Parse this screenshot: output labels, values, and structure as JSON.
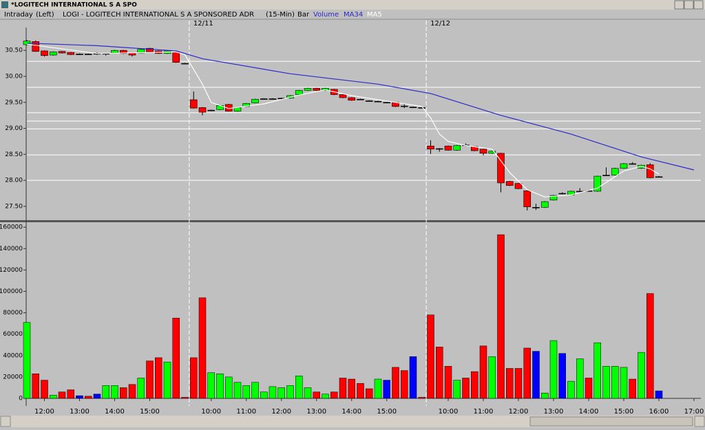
{
  "window": {
    "title": "*LOGITECH INTERNATIONAL S A SPO"
  },
  "header": {
    "mode": "Intraday",
    "side": "(Left)",
    "style": "Bar"
  },
  "chart_data": [
    {
      "type": "candlestick",
      "title": "LOGI - LOGITECH INTERNATIONAL S A SPONSORED ADR",
      "interval": "(15-Min)",
      "up_color": "#00ff00",
      "down_color": "#ff0000",
      "flat_color": "#000000",
      "ylim": [
        27.26,
        30.94
      ],
      "yticks": [
        {
          "value": 30.5,
          "label": "30.50"
        },
        {
          "value": 30.0,
          "label": "30.00"
        },
        {
          "value": 29.5,
          "label": "29.50"
        },
        {
          "value": 29.0,
          "label": "29.00"
        },
        {
          "value": 28.5,
          "label": "28.50"
        },
        {
          "value": 28.0,
          "label": "28.00"
        },
        {
          "value": 27.5,
          "label": "27.50"
        }
      ],
      "hlines": [
        30.29,
        29.79,
        29.3,
        29.14,
        28.99,
        28.49,
        28.0
      ],
      "day_starts": [
        19,
        46
      ],
      "day_labels": [
        "12/11",
        "12/12"
      ],
      "open": [
        30.61,
        30.67,
        30.49,
        30.41,
        30.48,
        30.46,
        30.43,
        30.43,
        30.44,
        30.44,
        30.45,
        30.5,
        30.45,
        30.45,
        30.54,
        30.49,
        30.44,
        30.47,
        30.25,
        29.55,
        29.4,
        29.35,
        29.36,
        29.46,
        29.33,
        29.42,
        29.49,
        29.57,
        29.57,
        29.58,
        29.58,
        29.65,
        29.73,
        29.77,
        29.73,
        29.75,
        29.65,
        29.59,
        29.56,
        29.53,
        29.52,
        29.5,
        29.5,
        29.43,
        29.41,
        29.4,
        28.66,
        28.61,
        28.66,
        28.58,
        28.68,
        28.65,
        28.6,
        28.52,
        28.52,
        27.98,
        27.94,
        27.8,
        27.48,
        27.48,
        27.62,
        27.75,
        27.72,
        27.79,
        27.8,
        27.79,
        28.1,
        28.1,
        28.23,
        28.32,
        28.23,
        28.3,
        28.07,
        null,
        null,
        null,
        null
      ],
      "high": [
        30.7,
        30.69,
        30.5,
        30.48,
        30.49,
        30.47,
        30.44,
        30.44,
        30.46,
        30.45,
        30.51,
        30.51,
        30.46,
        30.53,
        30.55,
        30.5,
        30.5,
        30.48,
        30.26,
        29.71,
        29.41,
        29.36,
        29.45,
        29.47,
        29.41,
        29.49,
        29.57,
        29.58,
        29.58,
        29.59,
        29.64,
        29.74,
        29.78,
        29.78,
        29.78,
        29.76,
        29.66,
        29.6,
        29.57,
        29.54,
        29.53,
        29.51,
        29.51,
        29.47,
        29.42,
        29.41,
        28.77,
        28.62,
        28.67,
        28.68,
        28.71,
        28.66,
        28.61,
        28.57,
        28.53,
        27.99,
        27.95,
        27.81,
        27.55,
        27.6,
        27.72,
        27.77,
        27.8,
        27.85,
        27.82,
        28.09,
        28.25,
        28.24,
        28.33,
        28.35,
        28.3,
        28.33,
        28.08,
        null,
        null,
        null,
        null
      ],
      "low": [
        30.6,
        30.47,
        30.38,
        30.4,
        30.44,
        30.41,
        30.42,
        30.42,
        30.41,
        30.4,
        30.44,
        30.43,
        30.38,
        30.44,
        30.46,
        30.43,
        30.43,
        30.26,
        30.24,
        29.38,
        29.25,
        29.33,
        29.35,
        29.32,
        29.32,
        29.41,
        29.48,
        29.56,
        29.56,
        29.57,
        29.57,
        29.64,
        29.72,
        29.72,
        29.72,
        29.64,
        29.58,
        29.53,
        29.55,
        29.52,
        29.51,
        29.49,
        29.41,
        29.39,
        29.4,
        29.39,
        28.51,
        28.55,
        28.57,
        28.57,
        28.66,
        28.56,
        28.48,
        28.51,
        27.77,
        27.89,
        27.83,
        27.42,
        27.43,
        27.47,
        27.61,
        27.73,
        27.71,
        27.78,
        27.79,
        27.78,
        28.09,
        28.09,
        28.22,
        28.31,
        28.22,
        28.04,
        28.06,
        null,
        null,
        null,
        null
      ],
      "close": [
        30.68,
        30.48,
        30.4,
        30.47,
        30.45,
        30.42,
        30.43,
        30.43,
        30.44,
        30.44,
        30.5,
        30.44,
        30.41,
        30.52,
        30.47,
        30.44,
        30.49,
        30.27,
        30.25,
        29.39,
        29.31,
        29.35,
        29.44,
        29.33,
        29.4,
        29.48,
        29.56,
        29.57,
        29.57,
        29.58,
        29.63,
        29.73,
        29.77,
        29.73,
        29.77,
        29.65,
        29.59,
        29.54,
        29.56,
        29.53,
        29.52,
        29.5,
        29.42,
        29.43,
        29.41,
        29.4,
        28.6,
        28.61,
        28.58,
        28.67,
        28.68,
        28.57,
        28.52,
        28.56,
        27.95,
        27.9,
        27.84,
        27.49,
        27.48,
        27.59,
        27.71,
        27.75,
        27.79,
        27.79,
        27.8,
        28.08,
        28.1,
        28.23,
        28.32,
        28.32,
        28.29,
        28.05,
        28.07,
        null,
        null,
        null,
        null
      ],
      "series": [
        {
          "name": "MA34",
          "color": "#2a2ac8",
          "x": [
            0,
            8,
            17,
            20,
            30,
            40,
            46,
            54,
            62,
            70,
            76
          ],
          "values": [
            30.64,
            30.59,
            30.49,
            30.34,
            30.05,
            29.85,
            29.67,
            29.25,
            28.89,
            28.45,
            28.2
          ]
        },
        {
          "name": "MA5",
          "color": "#ffffff",
          "x": [
            0,
            8,
            17,
            18,
            20,
            21,
            23,
            27,
            31,
            34,
            37,
            42,
            45,
            46,
            47,
            48,
            50,
            53,
            55,
            57,
            59,
            62,
            65,
            68,
            70,
            71,
            72
          ],
          "values": [
            30.62,
            30.44,
            30.47,
            30.42,
            29.85,
            29.5,
            29.38,
            29.47,
            29.64,
            29.74,
            29.63,
            29.5,
            29.42,
            29.2,
            28.89,
            28.75,
            28.67,
            28.6,
            28.15,
            27.82,
            27.68,
            27.72,
            27.85,
            28.18,
            28.27,
            28.22,
            28.12
          ]
        }
      ]
    },
    {
      "type": "bar",
      "ylim": [
        0,
        164000
      ],
      "yticks": [
        0,
        20000,
        40000,
        60000,
        80000,
        100000,
        120000,
        140000,
        160000
      ],
      "categories": [
        null,
        null,
        "12:00",
        null,
        null,
        null,
        "13:00",
        null,
        null,
        null,
        "14:00",
        null,
        null,
        null,
        "15:00",
        null,
        null,
        null,
        null,
        null,
        null,
        "10:00",
        null,
        null,
        null,
        "11:00",
        null,
        null,
        null,
        "12:00",
        null,
        null,
        null,
        "13:00",
        null,
        null,
        null,
        "14:00",
        null,
        null,
        null,
        "15:00",
        null,
        null,
        null,
        null,
        null,
        null,
        "10:00",
        null,
        null,
        null,
        "11:00",
        null,
        null,
        null,
        "12:00",
        null,
        null,
        null,
        "13:00",
        null,
        null,
        null,
        "14:00",
        null,
        null,
        null,
        "15:00",
        null,
        null,
        null,
        "16:00",
        null,
        null,
        null,
        "17:00"
      ],
      "series": [
        {
          "name": "Volume",
          "values": [
            71000,
            23000,
            17000,
            3000,
            6000,
            8000,
            2500,
            2000,
            4000,
            12000,
            12000,
            10000,
            13000,
            19000,
            35000,
            38000,
            34000,
            75000,
            1000,
            38000,
            94000,
            24000,
            23000,
            20000,
            15000,
            12000,
            15000,
            6000,
            11000,
            10000,
            12000,
            21000,
            10000,
            6000,
            4000,
            6000,
            19000,
            18000,
            14000,
            9000,
            18000,
            17000,
            29000,
            26000,
            39000,
            1000,
            78000,
            48000,
            30000,
            17000,
            19000,
            25000,
            49000,
            39000,
            153000,
            28000,
            28000,
            47000,
            44000,
            5000,
            54000,
            42000,
            16000,
            37000,
            19000,
            52000,
            30000,
            30000,
            29000,
            18000,
            43000,
            98000,
            7000,
            null,
            null,
            null,
            null
          ],
          "colors": [
            "#00ff00",
            "#ff0000",
            "#ff0000",
            "#00ff00",
            "#ff0000",
            "#ff0000",
            "#0000ff",
            "#ff0000",
            "#0000ff",
            "#00ff00",
            "#00ff00",
            "#ff0000",
            "#ff0000",
            "#00ff00",
            "#ff0000",
            "#ff0000",
            "#00ff00",
            "#ff0000",
            "#ff0000",
            "#ff0000",
            "#ff0000",
            "#00ff00",
            "#00ff00",
            "#00ff00",
            "#00ff00",
            "#00ff00",
            "#00ff00",
            "#00ff00",
            "#00ff00",
            "#00ff00",
            "#00ff00",
            "#00ff00",
            "#00ff00",
            "#ff0000",
            "#00ff00",
            "#ff0000",
            "#ff0000",
            "#ff0000",
            "#ff0000",
            "#ff0000",
            "#00ff00",
            "#0000ff",
            "#ff0000",
            "#ff0000",
            "#0000ff",
            "#ff0000",
            "#ff0000",
            "#ff0000",
            "#ff0000",
            "#00ff00",
            "#ff0000",
            "#ff0000",
            "#ff0000",
            "#00ff00",
            "#ff0000",
            "#ff0000",
            "#ff0000",
            "#ff0000",
            "#0000ff",
            "#00ff00",
            "#00ff00",
            "#0000ff",
            "#00ff00",
            "#00ff00",
            "#ff0000",
            "#00ff00",
            "#00ff00",
            "#00ff00",
            "#00ff00",
            "#ff0000",
            "#00ff00",
            "#ff0000",
            "#0000ff",
            null,
            null,
            null,
            null
          ]
        }
      ]
    }
  ]
}
